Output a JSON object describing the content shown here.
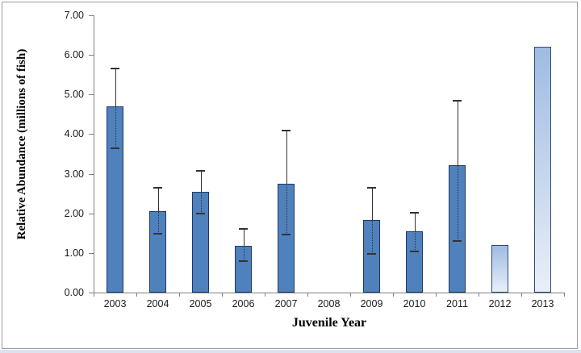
{
  "chart_data": {
    "type": "bar",
    "title": "",
    "xlabel": "Juvenile Year",
    "ylabel": "Relative Abundance (millions of fish)",
    "ylim": [
      0,
      7
    ],
    "ytick_step": 1.0,
    "ytick_labels": [
      "0.00",
      "1.00",
      "2.00",
      "3.00",
      "4.00",
      "5.00",
      "6.00",
      "7.00"
    ],
    "grid": false,
    "legend": "none",
    "categories": [
      "2003",
      "2004",
      "2005",
      "2006",
      "2007",
      "2008",
      "2009",
      "2010",
      "2011",
      "2012",
      "2013"
    ],
    "series": [
      {
        "name": "Relative Abundance",
        "values": [
          4.7,
          2.05,
          2.55,
          1.18,
          2.75,
          0.0,
          1.83,
          1.55,
          3.22,
          1.2,
          6.2
        ],
        "error_low": [
          3.65,
          1.49,
          2.0,
          0.8,
          1.47,
          null,
          0.98,
          1.04,
          1.31,
          null,
          null
        ],
        "error_high": [
          5.65,
          2.65,
          3.08,
          1.61,
          4.1,
          null,
          2.65,
          2.02,
          4.84,
          null,
          null
        ],
        "bar_styles": [
          "solid",
          "solid",
          "solid",
          "solid",
          "solid",
          "none",
          "solid",
          "solid",
          "solid",
          "light",
          "light"
        ]
      }
    ]
  },
  "colors": {
    "bar_fill": "#4f81bd",
    "bar_border": "#1f3864",
    "light_bar_top": "#9fbbe1",
    "light_bar_bottom": "#e9eff8",
    "light_bar_border": "#2e4a73",
    "error_bar": "#333333",
    "axis_line": "#7f7f7f",
    "tick_label": "#1a1a1a",
    "frame_border": "#9c9c9c",
    "bottom_strip": "#dbe3ee"
  }
}
